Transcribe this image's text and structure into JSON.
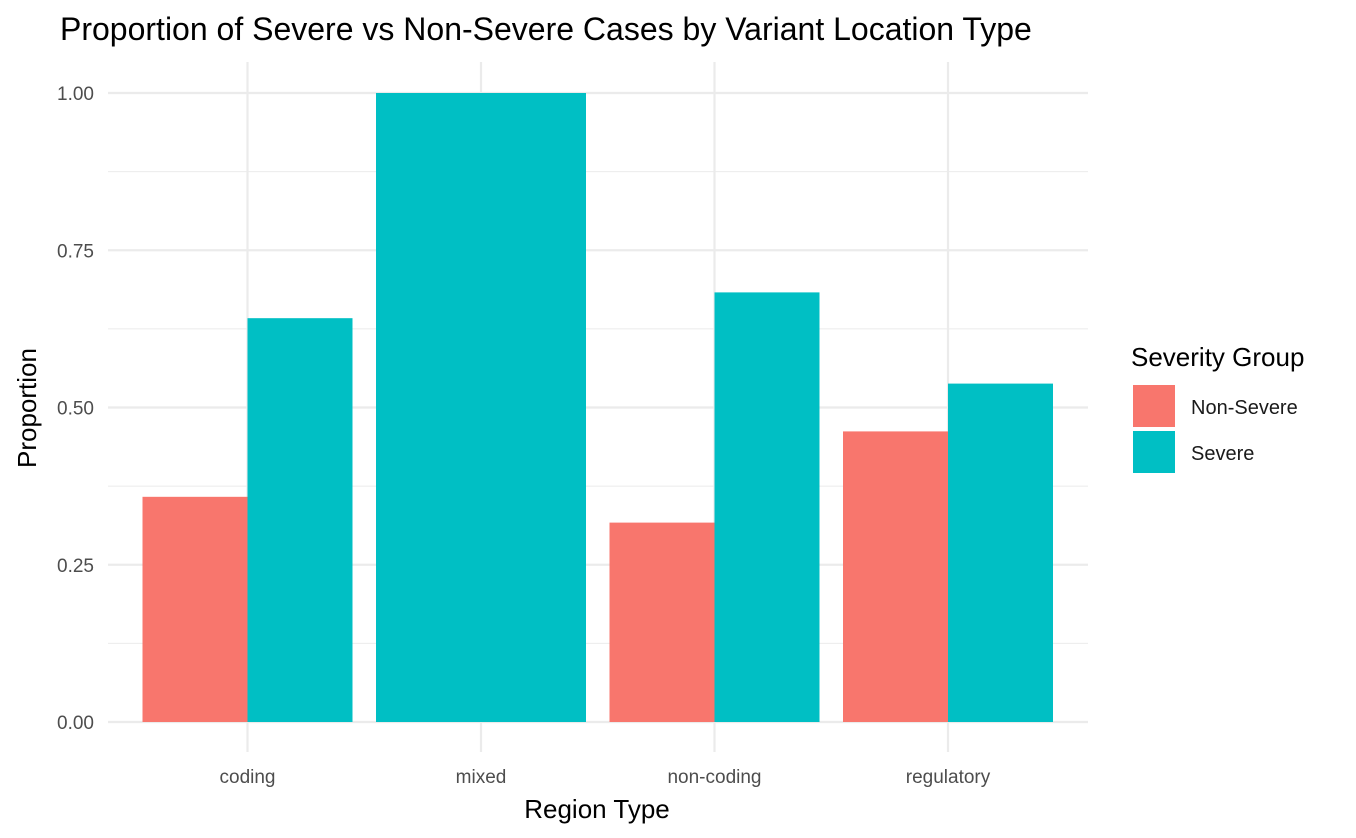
{
  "chart_data": {
    "type": "bar",
    "title": "Proportion of Severe vs Non-Severe Cases by Variant Location Type",
    "xlabel": "Region Type",
    "ylabel": "Proportion",
    "categories": [
      "coding",
      "mixed",
      "non-coding",
      "regulatory"
    ],
    "series": [
      {
        "name": "Non-Severe",
        "values": [
          0.358,
          0,
          0.317,
          0.462
        ],
        "color": "#F8766D"
      },
      {
        "name": "Severe",
        "values": [
          0.642,
          1.0,
          0.683,
          0.538
        ],
        "color": "#00BFC4"
      }
    ],
    "ylim": [
      0,
      1.0
    ],
    "yticks": [
      0,
      0.25,
      0.5,
      0.75,
      1.0
    ],
    "ytick_labels": [
      "0.00",
      "0.25",
      "0.50",
      "0.75",
      "1.00"
    ],
    "grid": true,
    "legend": {
      "title": "Severity Group",
      "position": "right"
    },
    "bar_mode": "dodge"
  }
}
